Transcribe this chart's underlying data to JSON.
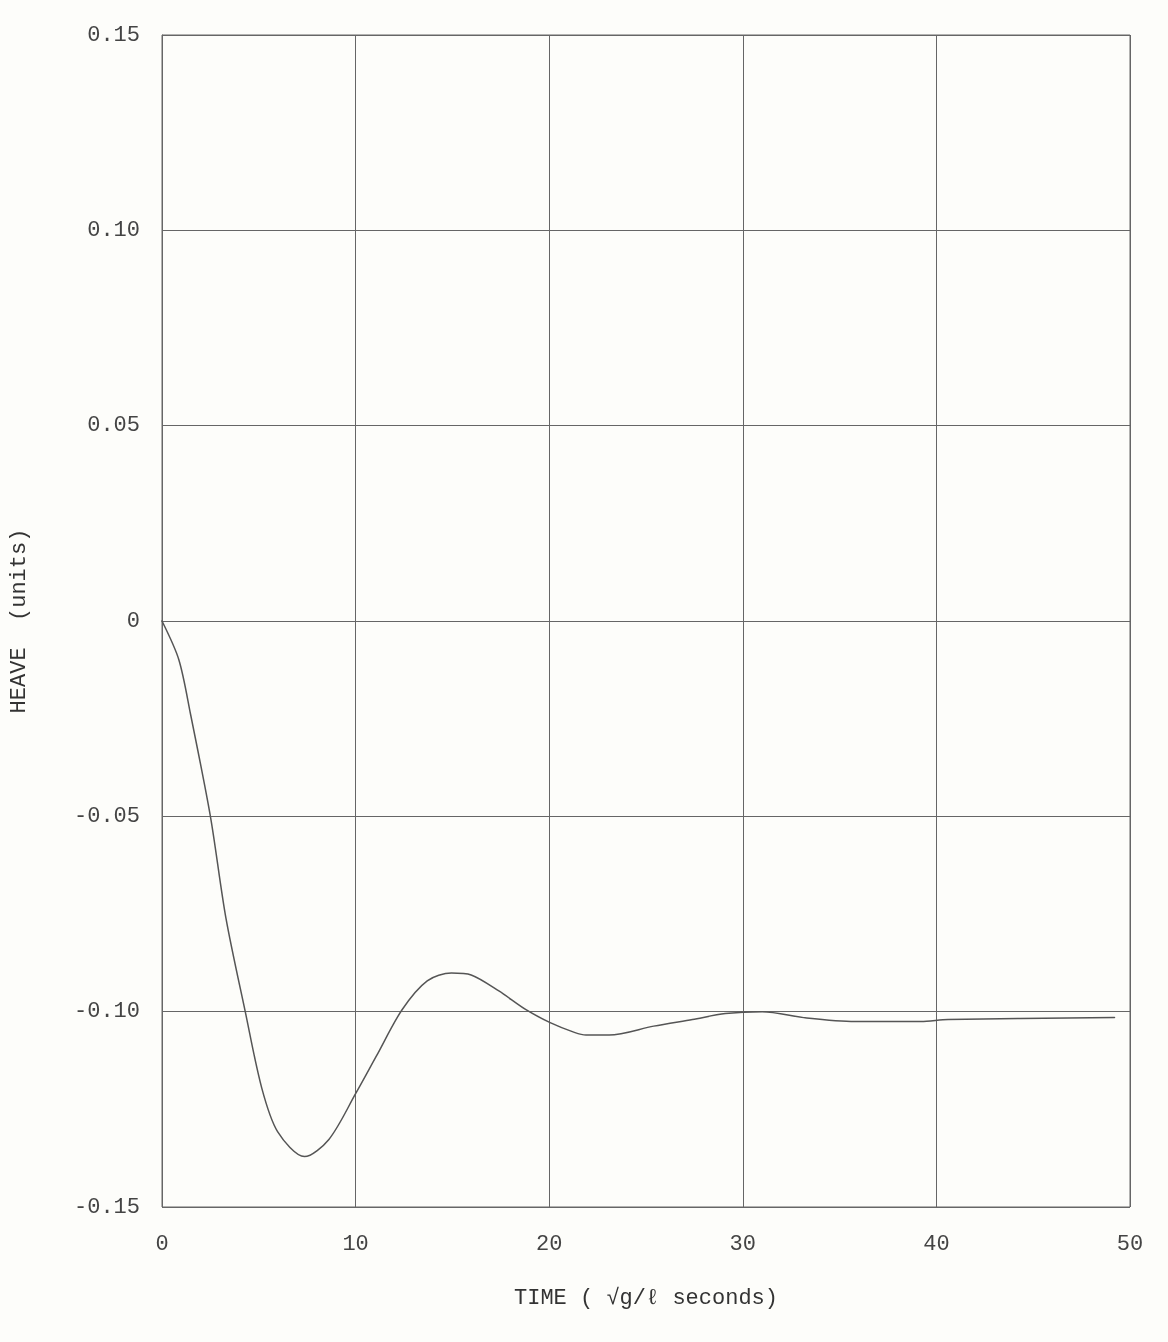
{
  "chart_data": {
    "type": "line",
    "xlabel": "TIME ( √g/ℓ seconds)",
    "ylabel": "HEAVE  (units)",
    "xlim": [
      0,
      50
    ],
    "xticks": [
      0,
      10,
      20,
      30,
      40,
      50
    ],
    "ylim": [
      -0.15,
      0.15
    ],
    "yticks": [
      {
        "value": -0.15,
        "label": "-0.15"
      },
      {
        "value": -0.1,
        "label": "-0.10"
      },
      {
        "value": -0.05,
        "label": "-0.05"
      },
      0,
      {
        "value": 0.05,
        "label": "0.05"
      },
      {
        "value": 0.1,
        "label": "0.10"
      },
      {
        "value": 0.15,
        "label": "0.15"
      }
    ],
    "grid": true,
    "marker": "none",
    "line_style": "solid",
    "series": [
      {
        "color": "#555555",
        "x": [
          0,
          0.87,
          1.48,
          2.5,
          3.3,
          4.3,
          5.15,
          5.97,
          7.36,
          8.62,
          10.0,
          11.07,
          12.4,
          13.7,
          14.95,
          15.97,
          17.4,
          18.8,
          20.05,
          21.3,
          21.9,
          23.1,
          25.4,
          27.4,
          29.1,
          31.0,
          33.3,
          35.8,
          39.2,
          40.6,
          49.2
        ],
        "values": [
          0,
          -0.0099,
          -0.024,
          -0.05,
          -0.076,
          -0.1,
          -0.1195,
          -0.1307,
          -0.1371,
          -0.1327,
          -0.121,
          -0.1114,
          -0.0995,
          -0.0921,
          -0.0901,
          -0.0906,
          -0.0947,
          -0.0995,
          -0.1028,
          -0.1053,
          -0.106,
          -0.106,
          -0.1037,
          -0.102,
          -0.1005,
          -0.1,
          -0.1016,
          -0.1025,
          -0.1025,
          -0.102,
          -0.1015
        ]
      }
    ]
  }
}
